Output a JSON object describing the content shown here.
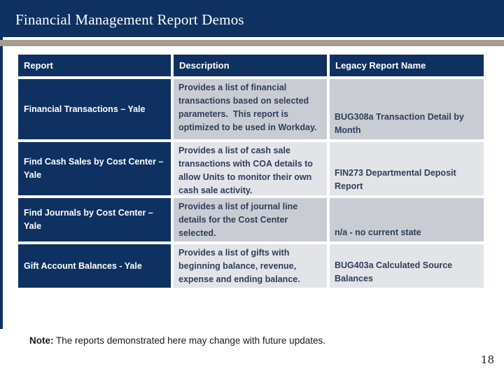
{
  "slide": {
    "title": "Financial Management Report Demos",
    "note_label": "Note:",
    "note_text": " The reports demonstrated here may change with future updates.",
    "page_number": "18"
  },
  "table": {
    "headers": [
      "Report",
      "Description",
      "Legacy Report Name"
    ],
    "rows": [
      {
        "report": "Financial Transactions – Yale",
        "description": "Provides a list of financial transactions based on selected parameters.  This report is optimized to be used in Workday.",
        "legacy": "BUG308a Transaction Detail by Month"
      },
      {
        "report": "Find Cash Sales by Cost Center – Yale",
        "description": "Provides a list of cash sale transactions with COA details to allow Units to monitor their own cash sale activity.",
        "legacy": "FIN273 Departmental Deposit Report"
      },
      {
        "report": "Find Journals by Cost Center – Yale",
        "description": "Provides a list of journal line details for the Cost Center selected.",
        "legacy": "n/a - no current state"
      },
      {
        "report": "Gift Account Balances - Yale",
        "description": "Provides a list of gifts with beginning balance, revenue, expense and ending balance.",
        "legacy": "BUG403a Calculated Source Balances"
      }
    ]
  },
  "colors": {
    "navy": "#0e3161",
    "tan_bar": "#a59b8e",
    "row_odd": "#c9ccd3",
    "row_even": "#e3e4e8",
    "cell_text": "#2f3d5c"
  }
}
